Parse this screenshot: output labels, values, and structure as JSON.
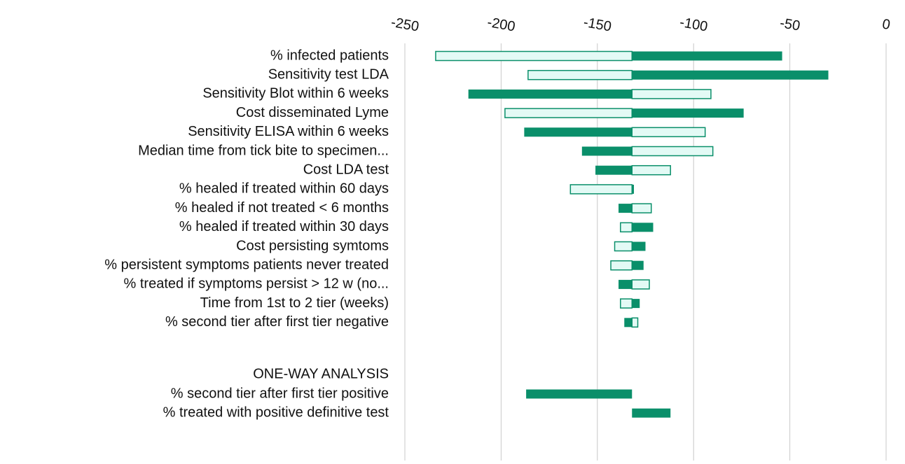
{
  "chart_data": {
    "type": "tornado",
    "base": -132,
    "xlim": [
      -260,
      5
    ],
    "xticks": [
      -250,
      -200,
      -150,
      -100,
      -50,
      0
    ],
    "grid": true,
    "categories": [
      "% infected patients",
      "Sensitivity test LDA",
      "Sensitivity Blot within 6 weeks",
      "Cost disseminated Lyme",
      "Sensitivity ELISA within 6 weeks",
      "Median time from tick bite to specimen...",
      "Cost LDA test",
      "% healed if treated within 60 days",
      "% healed if not treated < 6 months",
      "% healed if treated within 30 days",
      "Cost persisting symtoms",
      "% persistent symptoms patients never treated",
      "% treated if symptoms persist > 12 w (no...",
      "Time from 1st to 2 tier (weeks)",
      "% second tier after first tier negative"
    ],
    "series": [
      {
        "color": "#e3faf5",
        "values": [
          -234,
          -186,
          -91,
          -198,
          -94,
          -90,
          -112,
          -164,
          -122,
          -138,
          -141,
          -143,
          -123,
          -138,
          -129
        ]
      },
      {
        "color": "#0a8f6a",
        "values": [
          -54,
          -30,
          -217,
          -74,
          -188,
          -158,
          -151,
          -131,
          -139,
          -121,
          -125,
          -126,
          -139,
          -128,
          -136
        ]
      }
    ],
    "one_way": {
      "title": "ONE-WAY ANALYSIS",
      "categories": [
        "% second tier after first tier positive",
        "% treated with positive definitive test"
      ],
      "color": "#0a8f6a",
      "values": [
        -187,
        -112
      ]
    }
  }
}
